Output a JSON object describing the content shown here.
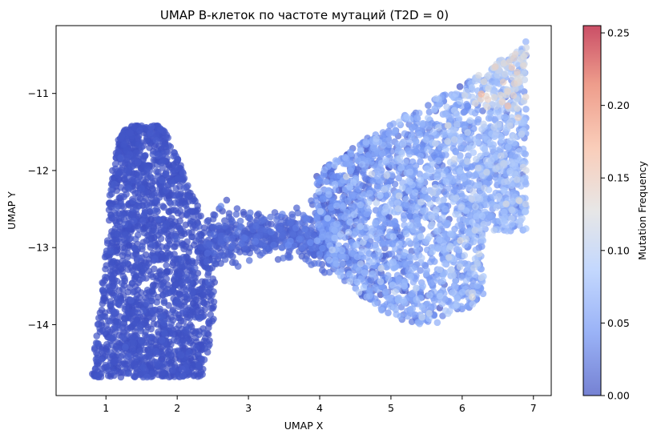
{
  "chart_data": {
    "type": "scatter",
    "title": "UMAP B-клеток по частоте мутаций (T2D = 0)",
    "xlabel": "UMAP X",
    "ylabel": "UMAP Y",
    "xlim": [
      0.3,
      7.25
    ],
    "ylim": [
      -14.92,
      -10.12
    ],
    "xticks": [
      1,
      2,
      3,
      4,
      5,
      6,
      7
    ],
    "yticks": [
      -11,
      -12,
      -13,
      -14
    ],
    "grid": false,
    "legend": "none",
    "marker_alpha": 0.7,
    "colormap": "coolwarm",
    "colormap_stops": [
      "#3b4cc0",
      "#6f92f3",
      "#aac7fd",
      "#dddcdc",
      "#f7b89c",
      "#e7745b",
      "#b40426"
    ],
    "colorbar": {
      "label": "Mutation Frequency",
      "range": [
        0,
        0.255
      ],
      "ticks": [
        "0.00",
        "0.05",
        "0.10",
        "0.15",
        "0.20",
        "0.25"
      ]
    },
    "clusters": [
      {
        "region": "left-blob",
        "x_range": [
          0.65,
          2.55
        ],
        "y_range": [
          -14.68,
          -11.42
        ],
        "point_count": 2000,
        "mutation_frequency_typical": 0.0
      },
      {
        "region": "bridge",
        "x_range": [
          2.4,
          4.2
        ],
        "y_range": [
          -13.2,
          -12.5
        ],
        "point_count": 500,
        "mutation_frequency_typical": 0.01
      },
      {
        "region": "right-cluster",
        "x_range": [
          3.9,
          6.95
        ],
        "y_range": [
          -14.1,
          -10.3
        ],
        "point_count": 2500,
        "mutation_frequency_typical": 0.06
      }
    ]
  }
}
